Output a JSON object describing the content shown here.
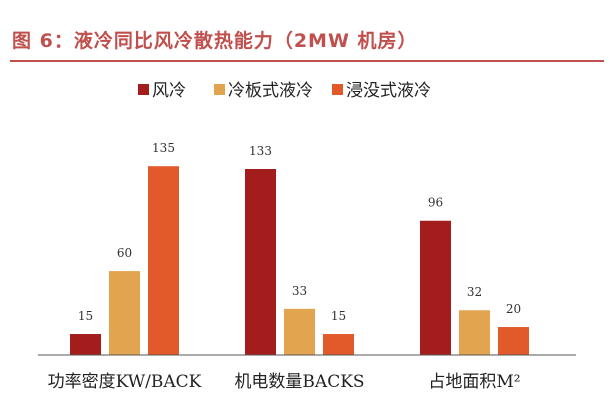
{
  "figure_title": "图 6：液冷同比风冷散热能力（2MW 机房）",
  "chart_data": {
    "type": "bar",
    "title": "图 6：液冷同比风冷散热能力（2MW 机房）",
    "categories": [
      "功率密度KW/BACK",
      "机电数量BACKS",
      "占地面积M²"
    ],
    "series": [
      {
        "name": "风冷",
        "color": "#a31d1d",
        "values": [
          15,
          133,
          96
        ]
      },
      {
        "name": "冷板式液冷",
        "color": "#e3a44f",
        "values": [
          60,
          33,
          32
        ]
      },
      {
        "name": "浸没式液冷",
        "color": "#e2592a",
        "values": [
          135,
          15,
          20
        ]
      }
    ],
    "ylim": [
      0,
      140
    ],
    "legend_position": "top",
    "grid": false,
    "data_labels": true
  }
}
